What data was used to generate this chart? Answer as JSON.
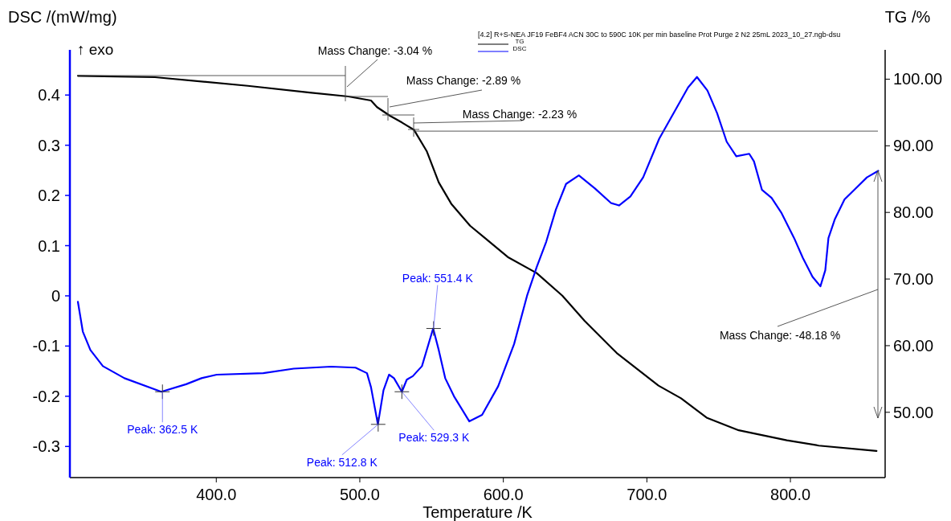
{
  "chart_data": {
    "type": "line",
    "xlabel": "Temperature /K",
    "ylabel": "DSC /(mW/mg)",
    "y2label": "TG /%",
    "legend_title": "[4.2] R+S-NEA JF19 FeBF4 ACN 30C to 590C 10K per min baseline Prot  Purge 2 N2 25mL 2023_10_27.ngb-dsu",
    "legend": "top right",
    "ref_lines": [
      {
        "axis": "y2",
        "value": 92.2
      }
    ],
    "xlim": [
      298,
      866
    ],
    "xticks": [
      {
        "value": 400,
        "label": "400.0"
      },
      {
        "value": 500,
        "label": "500.0"
      },
      {
        "value": 600,
        "label": "600.0"
      },
      {
        "value": 700,
        "label": "700.0"
      },
      {
        "value": 800,
        "label": "800.0"
      }
    ],
    "ylim": [
      -0.362,
      0.49
    ],
    "yticks": [
      {
        "value": -0.3,
        "label": "-0.3"
      },
      {
        "value": -0.2,
        "label": "-0.2"
      },
      {
        "value": -0.1,
        "label": "-0.1"
      },
      0,
      {
        "value": 0.1,
        "label": "0.1"
      },
      {
        "value": 0.2,
        "label": "0.2"
      },
      {
        "value": 0.3,
        "label": "0.3"
      },
      {
        "value": 0.4,
        "label": "0.4"
      }
    ],
    "y2lim": [
      40.2,
      104.4
    ],
    "y2ticks": [
      {
        "value": 50,
        "label": "50.00"
      },
      {
        "value": 60,
        "label": "60.00"
      },
      {
        "value": 70,
        "label": "70.00"
      },
      {
        "value": 80,
        "label": "80.00"
      },
      {
        "value": 90,
        "label": "90.00"
      },
      {
        "value": 100,
        "label": "100.00"
      }
    ],
    "series": [
      {
        "name": "TG",
        "color": "#000000",
        "axis": "y2",
        "x": [
          303.6,
          357.3,
          422,
          465,
          492,
          507.8,
          512,
          521,
          529.3,
          537.7,
          546.6,
          555,
          563.7,
          576.8,
          586.9,
          603.1,
          623.2,
          641.1,
          656.7,
          679,
          708.1,
          723.8,
          741.6,
          764,
          797.5,
          819.8,
          860
        ],
        "values": [
          100.5,
          100.3,
          99.0,
          98.0,
          97.4,
          96.8,
          95.8,
          94.5,
          93.5,
          92.4,
          89.2,
          84.5,
          81.3,
          78.0,
          76.2,
          73.3,
          70.9,
          67.5,
          63.7,
          58.9,
          54.0,
          52.1,
          49.2,
          47.3,
          45.8,
          45.0,
          44.2
        ]
      },
      {
        "name": "DSC",
        "color": "#0000ff",
        "x": [
          303.6,
          307,
          312.3,
          321,
          336,
          361.7,
          379,
          389.7,
          400.3,
          432.7,
          454,
          479.9,
          497,
          505,
          507.8,
          512.6,
          516.5,
          520.4,
          523.8,
          529.3,
          532.7,
          536.9,
          543.3,
          551.1,
          555,
          559.5,
          565.6,
          576.3,
          585.2,
          596.4,
          607.5,
          616.5,
          623.2,
          629.9,
          636.6,
          643.7,
          652.6,
          663.8,
          675,
          680.6,
          688.5,
          697.4,
          708.6,
          719.8,
          728.7,
          734.9,
          742.2,
          748.9,
          755.6,
          762.3,
          771.3,
          774.6,
          780.2,
          786.9,
          793.6,
          802.6,
          808.6,
          815.4,
          820.9,
          824.3,
          826.5,
          831,
          837.7,
          844.4,
          853.3,
          861.2
        ],
        "values": [
          -0.012,
          -0.071,
          -0.108,
          -0.14,
          -0.164,
          -0.191,
          -0.176,
          -0.164,
          -0.157,
          -0.154,
          -0.145,
          -0.141,
          -0.143,
          -0.154,
          -0.182,
          -0.256,
          -0.188,
          -0.157,
          -0.164,
          -0.191,
          -0.167,
          -0.16,
          -0.14,
          -0.065,
          -0.108,
          -0.164,
          -0.2,
          -0.25,
          -0.237,
          -0.18,
          -0.096,
          0.0,
          0.057,
          0.108,
          0.172,
          0.223,
          0.24,
          0.214,
          0.185,
          0.18,
          0.198,
          0.236,
          0.313,
          0.37,
          0.415,
          0.436,
          0.409,
          0.364,
          0.307,
          0.278,
          0.283,
          0.268,
          0.211,
          0.195,
          0.166,
          0.115,
          0.076,
          0.038,
          0.019,
          0.051,
          0.115,
          0.153,
          0.192,
          0.211,
          0.236,
          0.249
        ]
      }
    ],
    "annotations": [
      "↑ exo",
      "Mass Change: -3.04 %",
      "Mass Change: -2.89 %",
      "Mass Change: -2.23 %",
      "Mass Change: -48.18 %",
      {
        "text": "Peak: 362.5 K",
        "x": 362.5,
        "y": -0.191
      },
      {
        "text": "Peak: 512.8 K",
        "x": 512.8,
        "y": -0.256
      },
      {
        "text": "Peak: 529.3 K",
        "x": 529.3,
        "y": -0.191
      },
      {
        "text": "Peak: 551.4 K",
        "x": 551.4,
        "y": -0.065
      }
    ]
  }
}
